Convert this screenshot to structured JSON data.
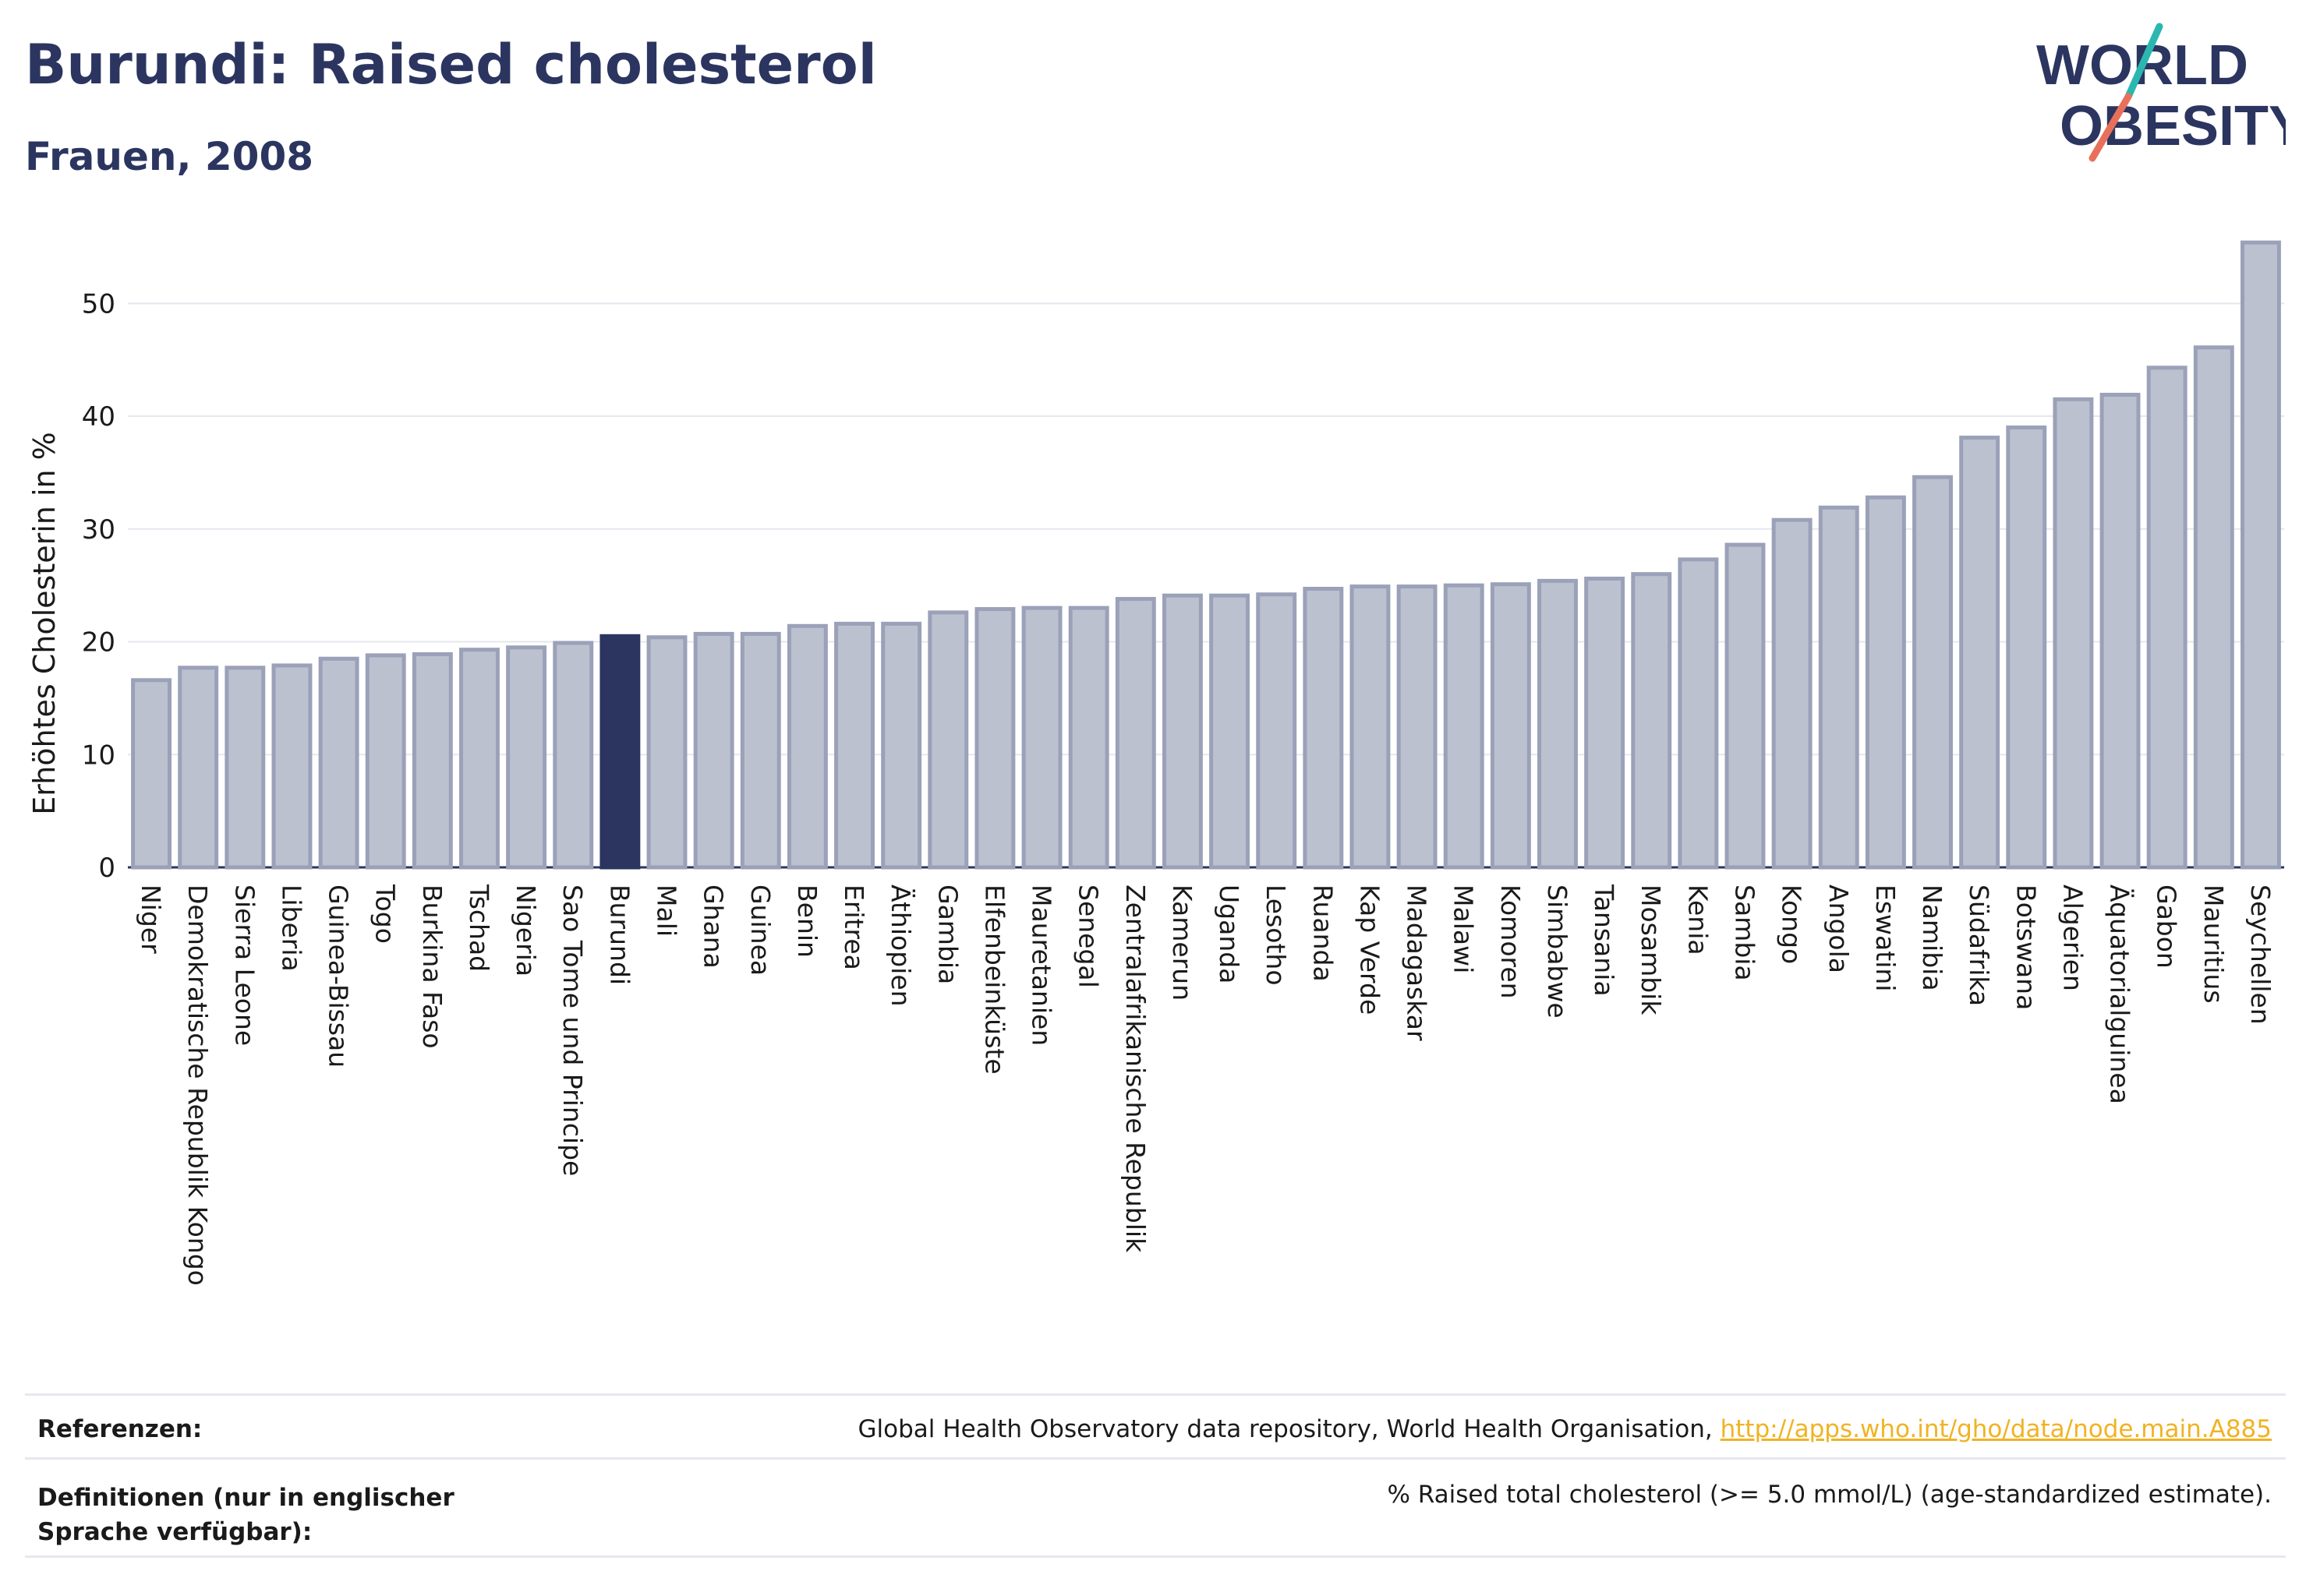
{
  "header": {
    "title": "Burundi: Raised cholesterol",
    "subtitle": "Frauen, 2008"
  },
  "logo": {
    "line1": "WORLD",
    "line2": "OBESITY",
    "colors": {
      "text": "#2b3560",
      "slash_teal": "#2ab7b0",
      "slash_coral": "#e8705b"
    }
  },
  "colors": {
    "bar_fill": "#bcc1cf",
    "bar_stroke": "#9aa1b8",
    "highlight_fill": "#2b3560",
    "grid": "#e5e7ee",
    "axis_text": "#1a1a1a"
  },
  "chart_data": {
    "type": "bar",
    "title": "",
    "xlabel": "",
    "ylabel": "Erhöhtes Cholesterin in %",
    "ylim": [
      0,
      57
    ],
    "yticks": [
      0,
      10,
      20,
      30,
      40,
      50
    ],
    "grid": true,
    "highlight": "Burundi",
    "categories": [
      "Niger",
      "Demokratische Republik Kongo",
      "Sierra Leone",
      "Liberia",
      "Guinea-Bissau",
      "Togo",
      "Burkina Faso",
      "Tschad",
      "Nigeria",
      "Sao Tome und Principe",
      "Burundi",
      "Mali",
      "Ghana",
      "Guinea",
      "Benin",
      "Eritrea",
      "Äthiopien",
      "Gambia",
      "Elfenbeinküste",
      "Mauretanien",
      "Senegal",
      "Zentralafrikanische Republik",
      "Kamerun",
      "Uganda",
      "Lesotho",
      "Ruanda",
      "Kap Verde",
      "Madagaskar",
      "Malawi",
      "Komoren",
      "Simbabwe",
      "Tansania",
      "Mosambik",
      "Kenia",
      "Sambia",
      "Kongo",
      "Angola",
      "Eswatini",
      "Namibia",
      "Südafrika",
      "Botswana",
      "Algerien",
      "Äquatorialguinea",
      "Gabon",
      "Mauritius",
      "Seychellen"
    ],
    "values": [
      16.6,
      17.7,
      17.7,
      17.9,
      18.5,
      18.8,
      18.9,
      19.3,
      19.5,
      19.9,
      20.5,
      20.4,
      20.7,
      20.7,
      21.4,
      21.6,
      21.6,
      22.6,
      22.9,
      23.0,
      23.0,
      23.8,
      24.1,
      24.1,
      24.2,
      24.7,
      24.9,
      24.9,
      25.0,
      25.1,
      25.4,
      25.6,
      26.0,
      27.3,
      28.6,
      30.8,
      31.9,
      32.8,
      34.6,
      38.1,
      39.0,
      41.5,
      41.9,
      44.3,
      46.1,
      55.4
    ]
  },
  "footer": {
    "references_label": "Referenzen:",
    "references_text": "Global Health Observatory data repository, World Health Organisation, ",
    "references_link": "http://apps.who.int/gho/data/node.main.A885",
    "definitions_label": "Definitionen (nur in englischer Sprache verfügbar):",
    "definitions_text": "% Raised total cholesterol (>= 5.0 mmol/L) (age-standardized estimate)."
  }
}
